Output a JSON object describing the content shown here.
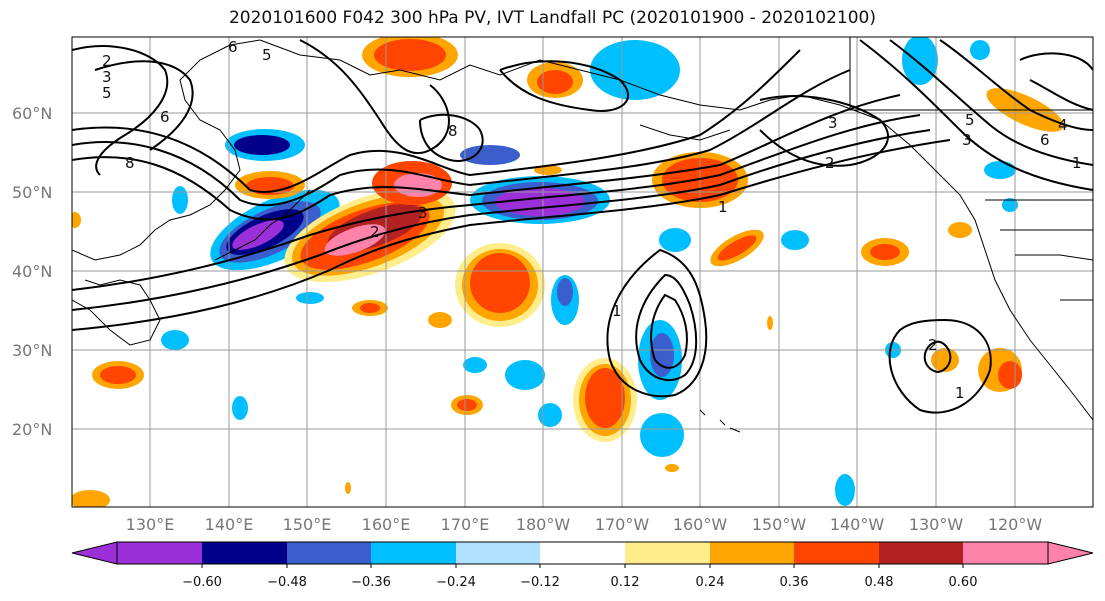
{
  "title": "2020101600 F042 300 hPa PV, IVT Landfall PC (2020101900 - 2020102100)",
  "lat_labels": [
    "60°N",
    "50°N",
    "40°N",
    "30°N",
    "20°N"
  ],
  "lon_labels": [
    "130°E",
    "140°E",
    "150°E",
    "160°E",
    "170°E",
    "180°W",
    "170°W",
    "160°W",
    "150°W",
    "140°W",
    "130°W",
    "120°W"
  ],
  "colorbar": {
    "ticks": [
      "−0.60",
      "−0.48",
      "−0.36",
      "−0.24",
      "−0.12",
      "0.12",
      "0.24",
      "0.36",
      "0.48",
      "0.60"
    ],
    "colors": [
      "#9b30d9",
      "#00008b",
      "#3a5fcd",
      "#00bfff",
      "#b0e2ff",
      "#ffffff",
      "#ffec8b",
      "#ffa500",
      "#ff4500",
      "#b22222",
      "#ff82ab"
    ]
  },
  "contour_labels": [
    "2",
    "3",
    "5",
    "6",
    "8",
    "2",
    "3",
    "1",
    "1",
    "2",
    "3",
    "5",
    "6",
    "2",
    "1",
    "5",
    "3",
    "4",
    "6",
    "1",
    "8"
  ]
}
